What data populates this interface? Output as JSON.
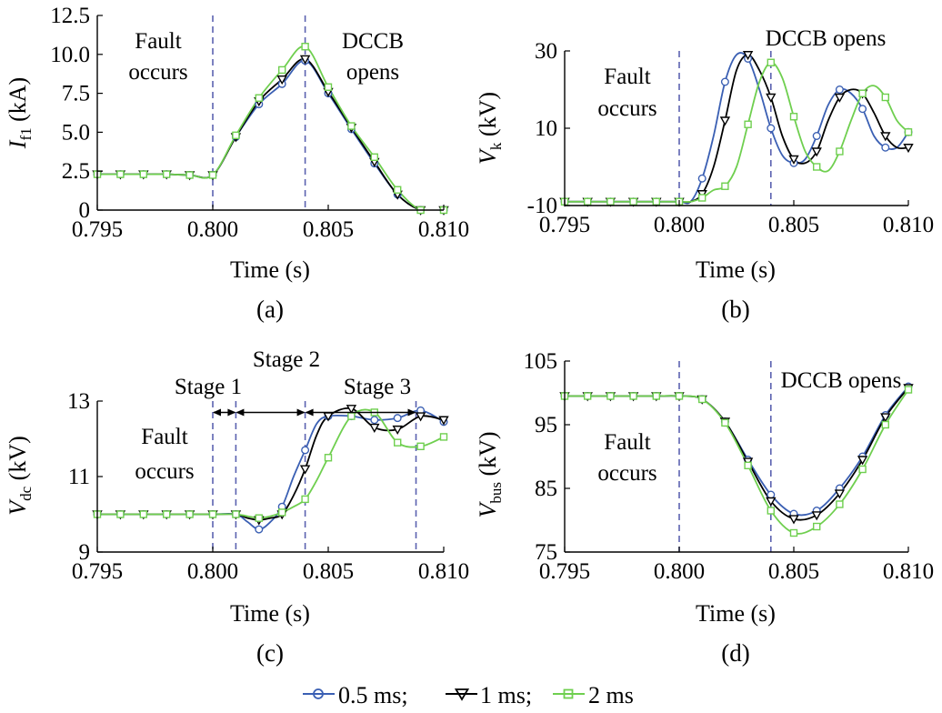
{
  "chart_data": [
    {
      "type": "line",
      "panel": "(a)",
      "xlabel": "Time (s)",
      "ylabel": "I",
      "ylabel_sub": "f1",
      "ylabel_unit": " (kA)",
      "xlim": [
        0.795,
        0.81
      ],
      "ylim": [
        0,
        12.5
      ],
      "xticks": [
        "0.795",
        "0.800",
        "0.805",
        "0.810"
      ],
      "yticks": [
        "0",
        "2.5",
        "5.0",
        "7.5",
        "10.0",
        "12.5"
      ],
      "xtick_values": [
        0.795,
        0.8,
        0.805,
        0.81
      ],
      "ytick_values": [
        0,
        2.5,
        5.0,
        7.5,
        10.0,
        12.5
      ],
      "annotations": [
        {
          "text": "Fault",
          "x": 0.8,
          "y": 11.3
        },
        {
          "text": "occurs",
          "x": 0.8,
          "y": 9.5
        },
        {
          "text": "DCCB",
          "x": 0.804,
          "y": 11.3
        },
        {
          "text": "opens",
          "x": 0.804,
          "y": 9.5
        }
      ],
      "vlines": [
        0.8,
        0.804
      ],
      "series": [
        {
          "name": "0.5 ms",
          "x": [
            0.795,
            0.796,
            0.797,
            0.798,
            0.799,
            0.8,
            0.801,
            0.802,
            0.803,
            0.804,
            0.805,
            0.806,
            0.807,
            0.808,
            0.809,
            0.81
          ],
          "y": [
            2.3,
            2.3,
            2.3,
            2.3,
            2.25,
            2.25,
            4.7,
            6.8,
            8.1,
            9.6,
            7.5,
            5.2,
            3.0,
            1.0,
            0.0,
            0.0
          ]
        },
        {
          "name": "1 ms",
          "x": [
            0.795,
            0.796,
            0.797,
            0.798,
            0.799,
            0.8,
            0.801,
            0.802,
            0.803,
            0.804,
            0.805,
            0.806,
            0.807,
            0.808,
            0.809,
            0.81
          ],
          "y": [
            2.3,
            2.3,
            2.3,
            2.3,
            2.25,
            2.25,
            4.7,
            7.0,
            8.4,
            9.7,
            7.6,
            5.3,
            3.1,
            1.0,
            0.0,
            0.0
          ]
        },
        {
          "name": "2 ms",
          "x": [
            0.795,
            0.796,
            0.797,
            0.798,
            0.799,
            0.8,
            0.801,
            0.802,
            0.803,
            0.804,
            0.805,
            0.806,
            0.807,
            0.808,
            0.809,
            0.81
          ],
          "y": [
            2.3,
            2.3,
            2.3,
            2.3,
            2.25,
            2.25,
            4.8,
            7.2,
            9.0,
            10.5,
            7.9,
            5.4,
            3.4,
            1.3,
            0.0,
            0.0
          ]
        }
      ]
    },
    {
      "type": "line",
      "panel": "(b)",
      "xlabel": "Time (s)",
      "ylabel": "V",
      "ylabel_sub": "k",
      "ylabel_unit": " (kV)",
      "xlim": [
        0.795,
        0.81
      ],
      "ylim": [
        -10,
        30
      ],
      "xticks": [
        "0.795",
        "0.800",
        "0.805",
        "0.810"
      ],
      "yticks": [
        "-10",
        "10",
        "30"
      ],
      "xtick_values": [
        0.795,
        0.8,
        0.805,
        0.81
      ],
      "ytick_values": [
        -10,
        10,
        30
      ],
      "annotations": [
        {
          "text": "Fault",
          "x": 0.8,
          "y": 16
        },
        {
          "text": "occurs",
          "x": 0.8,
          "y": 8
        },
        {
          "text": "DCCB opens",
          "x": 0.8042,
          "y": 35
        }
      ],
      "vlines": [
        0.8,
        0.804
      ],
      "series": [
        {
          "name": "0.5 ms",
          "x": [
            0.795,
            0.796,
            0.797,
            0.798,
            0.799,
            0.8,
            0.8005,
            0.801,
            0.8015,
            0.802,
            0.8025,
            0.803,
            0.8035,
            0.804,
            0.8045,
            0.805,
            0.8055,
            0.806,
            0.8065,
            0.807,
            0.8075,
            0.808,
            0.8085,
            0.809,
            0.8095,
            0.81
          ],
          "y": [
            -9,
            -9,
            -9,
            -9,
            -9,
            -9,
            -9,
            -3,
            8,
            22,
            29,
            28,
            20,
            10,
            3,
            1,
            2,
            8,
            16,
            20,
            19,
            15,
            8,
            5,
            5,
            9
          ]
        },
        {
          "name": "1 ms",
          "x": [
            0.795,
            0.796,
            0.797,
            0.798,
            0.799,
            0.8,
            0.8005,
            0.801,
            0.8015,
            0.802,
            0.8025,
            0.803,
            0.8035,
            0.804,
            0.8045,
            0.805,
            0.8055,
            0.806,
            0.8065,
            0.807,
            0.8075,
            0.808,
            0.8085,
            0.809,
            0.8095,
            0.81
          ],
          "y": [
            -9,
            -9,
            -9,
            -9,
            -9,
            -9,
            -9,
            -7,
            0,
            12,
            25,
            29,
            25,
            18,
            8,
            2,
            1,
            4,
            12,
            18,
            20,
            19,
            14,
            8,
            5,
            5
          ]
        },
        {
          "name": "2 ms",
          "x": [
            0.795,
            0.796,
            0.797,
            0.798,
            0.799,
            0.8,
            0.8005,
            0.801,
            0.8015,
            0.802,
            0.8025,
            0.803,
            0.8035,
            0.804,
            0.8045,
            0.805,
            0.8055,
            0.806,
            0.8065,
            0.807,
            0.8075,
            0.808,
            0.8085,
            0.809,
            0.8095,
            0.81
          ],
          "y": [
            -9,
            -9,
            -9,
            -9,
            -9,
            -9,
            -9,
            -8,
            -6,
            -5,
            0,
            11,
            22,
            27,
            23,
            13,
            4,
            0,
            -1,
            4,
            12,
            19,
            21,
            18,
            12,
            9
          ]
        }
      ]
    },
    {
      "type": "line",
      "panel": "(c)",
      "xlabel": "Time (s)",
      "ylabel": "V",
      "ylabel_sub": "dc",
      "ylabel_unit": " (kV)",
      "xlim": [
        0.795,
        0.81
      ],
      "ylim": [
        9,
        13
      ],
      "xticks": [
        "0.795",
        "0.800",
        "0.805",
        "0.810"
      ],
      "yticks": [
        "9",
        "11",
        "13"
      ],
      "xtick_values": [
        0.795,
        0.8,
        0.805,
        0.81
      ],
      "ytick_values": [
        9,
        11,
        13
      ],
      "annotations": [
        {
          "text": "Stage 1",
          "x": 0.8006,
          "y": 13.4
        },
        {
          "text": "Stage 2",
          "x": 0.804,
          "y": 13.9
        },
        {
          "text": "Stage 3",
          "x": 0.8067,
          "y": 13.4
        },
        {
          "text": "Fault",
          "x": 0.7987,
          "y": 12.3
        },
        {
          "text": "occurs",
          "x": 0.7987,
          "y": 11.6
        }
      ],
      "stage_arrows": [
        {
          "from": 0.8,
          "to": 0.801
        },
        {
          "from": 0.801,
          "to": 0.804
        },
        {
          "from": 0.804,
          "to": 0.8088
        }
      ],
      "stage_arrow_y": 12.7,
      "vlines": [
        0.8,
        0.801,
        0.804,
        0.8088
      ],
      "series": [
        {
          "name": "0.5 ms",
          "x": [
            0.795,
            0.796,
            0.797,
            0.798,
            0.799,
            0.8,
            0.801,
            0.8015,
            0.802,
            0.8025,
            0.803,
            0.8035,
            0.804,
            0.8045,
            0.805,
            0.806,
            0.807,
            0.808,
            0.809,
            0.81
          ],
          "y": [
            10.0,
            10.0,
            10.0,
            10.0,
            10.0,
            10.0,
            10.0,
            9.8,
            9.6,
            9.8,
            10.2,
            11.0,
            11.7,
            12.4,
            12.6,
            12.6,
            12.5,
            12.55,
            12.75,
            12.45
          ]
        },
        {
          "name": "1 ms",
          "x": [
            0.795,
            0.796,
            0.797,
            0.798,
            0.799,
            0.8,
            0.801,
            0.8015,
            0.802,
            0.8025,
            0.803,
            0.8035,
            0.804,
            0.8045,
            0.805,
            0.806,
            0.807,
            0.808,
            0.809,
            0.81
          ],
          "y": [
            10.0,
            10.0,
            10.0,
            10.0,
            10.0,
            10.0,
            10.0,
            9.9,
            9.85,
            9.9,
            10.0,
            10.5,
            11.2,
            12.1,
            12.6,
            12.8,
            12.3,
            12.25,
            12.6,
            12.5
          ]
        },
        {
          "name": "2 ms",
          "x": [
            0.795,
            0.796,
            0.797,
            0.798,
            0.799,
            0.8,
            0.801,
            0.8015,
            0.802,
            0.8025,
            0.803,
            0.8035,
            0.804,
            0.8045,
            0.805,
            0.806,
            0.807,
            0.808,
            0.809,
            0.81
          ],
          "y": [
            10.0,
            10.0,
            10.0,
            10.0,
            10.0,
            10.0,
            10.0,
            9.95,
            9.9,
            9.95,
            10.05,
            10.2,
            10.4,
            10.9,
            11.5,
            12.6,
            12.7,
            11.9,
            11.8,
            12.05
          ]
        }
      ]
    },
    {
      "type": "line",
      "panel": "(d)",
      "xlabel": "Time (s)",
      "ylabel": "V",
      "ylabel_sub": "bus",
      "ylabel_unit": " (kV)",
      "xlim": [
        0.795,
        0.81
      ],
      "ylim": [
        75,
        105
      ],
      "xticks": [
        "0.795",
        "0.800",
        "0.805",
        "0.810"
      ],
      "yticks": [
        "75",
        "85",
        "95",
        "105"
      ],
      "xtick_values": [
        0.795,
        0.8,
        0.805,
        0.81
      ],
      "ytick_values": [
        75,
        85,
        95,
        105
      ],
      "annotations": [
        {
          "text": "Fault",
          "x": 0.7989,
          "y": 92
        },
        {
          "text": "occurs",
          "x": 0.7989,
          "y": 88
        },
        {
          "text": "DCCB opens",
          "x": 0.8071,
          "y": 102
        }
      ],
      "vlines": [
        0.8,
        0.804
      ],
      "series": [
        {
          "name": "0.5 ms",
          "x": [
            0.795,
            0.796,
            0.797,
            0.798,
            0.799,
            0.8,
            0.801,
            0.802,
            0.803,
            0.804,
            0.805,
            0.806,
            0.807,
            0.808,
            0.809,
            0.81
          ],
          "y": [
            99.5,
            99.5,
            99.5,
            99.5,
            99.5,
            99.5,
            99.0,
            95.5,
            89.5,
            84.0,
            81.0,
            81.5,
            85.0,
            90.0,
            96.5,
            101.0
          ]
        },
        {
          "name": "1 ms",
          "x": [
            0.795,
            0.796,
            0.797,
            0.798,
            0.799,
            0.8,
            0.801,
            0.802,
            0.803,
            0.804,
            0.805,
            0.806,
            0.807,
            0.808,
            0.809,
            0.81
          ],
          "y": [
            99.5,
            99.5,
            99.5,
            99.5,
            99.5,
            99.5,
            99.0,
            95.5,
            89.2,
            83.0,
            80.2,
            80.8,
            84.2,
            89.5,
            96.2,
            100.8
          ]
        },
        {
          "name": "2 ms",
          "x": [
            0.795,
            0.796,
            0.797,
            0.798,
            0.799,
            0.8,
            0.801,
            0.802,
            0.803,
            0.804,
            0.805,
            0.806,
            0.807,
            0.808,
            0.809,
            0.81
          ],
          "y": [
            99.5,
            99.5,
            99.5,
            99.5,
            99.5,
            99.5,
            99.0,
            95.3,
            88.6,
            81.5,
            78.0,
            79.0,
            82.5,
            88.0,
            95.0,
            100.5
          ]
        }
      ]
    }
  ],
  "legend": {
    "items": [
      "0.5 ms;",
      "1 ms;",
      "2 ms"
    ]
  },
  "colors": {
    "s0": "#3a5fb3",
    "s1": "#000000",
    "s2": "#6fcf4f",
    "vline": "#5b62b0"
  },
  "markers": [
    "circle",
    "triangle-down",
    "square"
  ]
}
